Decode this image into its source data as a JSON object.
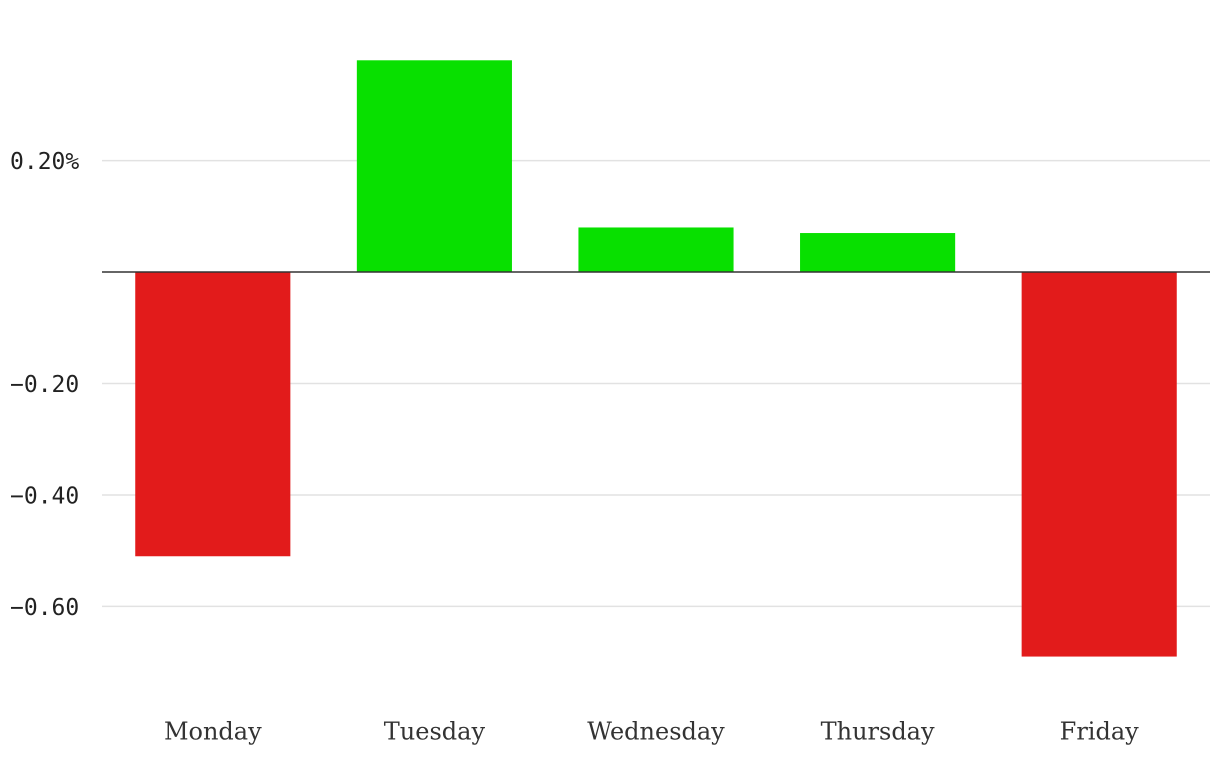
{
  "chart_data": {
    "type": "bar",
    "categories": [
      "Monday",
      "Tuesday",
      "Wednesday",
      "Thursday",
      "Friday"
    ],
    "values": [
      -0.51,
      0.38,
      0.08,
      0.07,
      -0.69
    ],
    "colors": [
      "#e21b1b",
      "#08e000",
      "#08e000",
      "#08e000",
      "#e21b1b"
    ],
    "ylim": [
      -0.75,
      0.42
    ],
    "yticks": [
      {
        "value": 0.2,
        "label": "0.20%"
      },
      {
        "value": -0.2,
        "label": "−0.20"
      },
      {
        "value": -0.4,
        "label": "−0.40"
      },
      {
        "value": -0.6,
        "label": "−0.60"
      }
    ],
    "grid": true
  }
}
